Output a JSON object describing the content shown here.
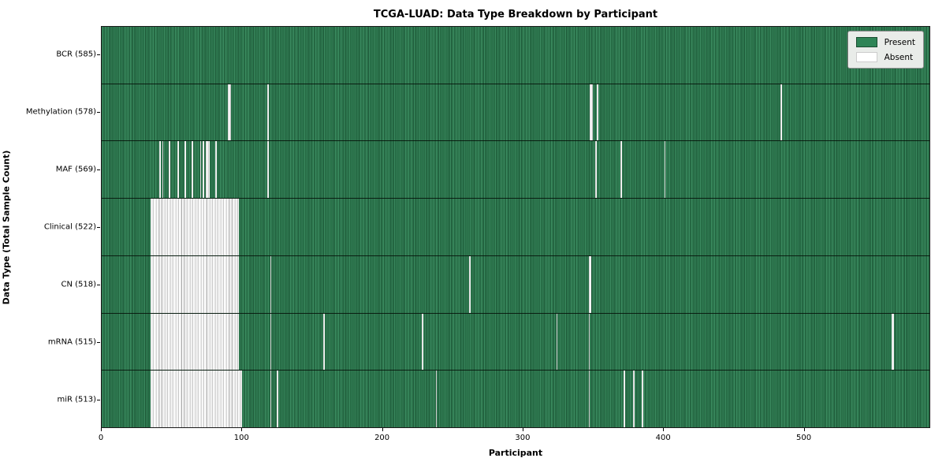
{
  "title": "TCGA-LUAD: Data Type Breakdown by Participant",
  "legend": {
    "position": "upper right",
    "entries": [
      {
        "label": "Present",
        "color": "#2e8456",
        "border": "#1a4d31"
      },
      {
        "label": "Absent",
        "color": "#ffffff",
        "border": "#cccccc"
      }
    ]
  },
  "chart_data": {
    "type": "heatmap",
    "title": "TCGA-LUAD: Data Type Breakdown by Participant",
    "xlabel": "Participant",
    "ylabel": "Data Type (Total Sample Count)",
    "x_ticks": [
      0,
      100,
      200,
      300,
      400,
      500
    ],
    "xlim": [
      0,
      590
    ],
    "n_participants": 585,
    "grid": false,
    "colors": {
      "present": "#2e8456",
      "absent": "#ffffff"
    },
    "legend_entries": [
      "Present",
      "Absent"
    ],
    "rows": [
      {
        "name": "BCR",
        "label": "BCR (585)",
        "present_count": 585,
        "absent_ranges": []
      },
      {
        "name": "Methylation",
        "label": "Methylation (578)",
        "present_count": 578,
        "absent_ranges": [
          [
            90,
            92
          ],
          [
            118,
            119
          ],
          [
            348,
            350
          ],
          [
            353,
            354
          ],
          [
            484,
            485
          ]
        ]
      },
      {
        "name": "MAF",
        "label": "MAF (569)",
        "present_count": 569,
        "absent_ranges": [
          [
            41,
            42
          ],
          [
            43,
            44
          ],
          [
            48,
            49
          ],
          [
            54,
            55
          ],
          [
            59,
            60
          ],
          [
            64,
            65
          ],
          [
            70,
            71
          ],
          [
            72,
            73
          ],
          [
            74,
            77
          ],
          [
            81,
            82
          ],
          [
            118,
            119
          ],
          [
            352,
            353
          ],
          [
            370,
            371
          ],
          [
            401,
            402
          ]
        ]
      },
      {
        "name": "Clinical",
        "label": "Clinical (522)",
        "present_count": 522,
        "absent_ranges": [
          [
            35,
            98
          ]
        ]
      },
      {
        "name": "CN",
        "label": "CN (518)",
        "present_count": 518,
        "absent_ranges": [
          [
            35,
            98
          ],
          [
            120,
            121
          ],
          [
            262,
            263
          ],
          [
            347,
            349
          ]
        ]
      },
      {
        "name": "mRNA",
        "label": "mRNA (515)",
        "present_count": 515,
        "absent_ranges": [
          [
            35,
            98
          ],
          [
            120,
            121
          ],
          [
            158,
            159
          ],
          [
            228,
            229
          ],
          [
            324,
            325
          ],
          [
            347,
            348
          ],
          [
            563,
            565
          ]
        ]
      },
      {
        "name": "miR",
        "label": "miR (513)",
        "present_count": 513,
        "absent_ranges": [
          [
            35,
            100
          ],
          [
            120,
            121
          ],
          [
            125,
            126
          ],
          [
            238,
            239
          ],
          [
            347,
            348
          ],
          [
            372,
            373
          ],
          [
            379,
            380
          ],
          [
            385,
            386
          ]
        ]
      }
    ]
  }
}
